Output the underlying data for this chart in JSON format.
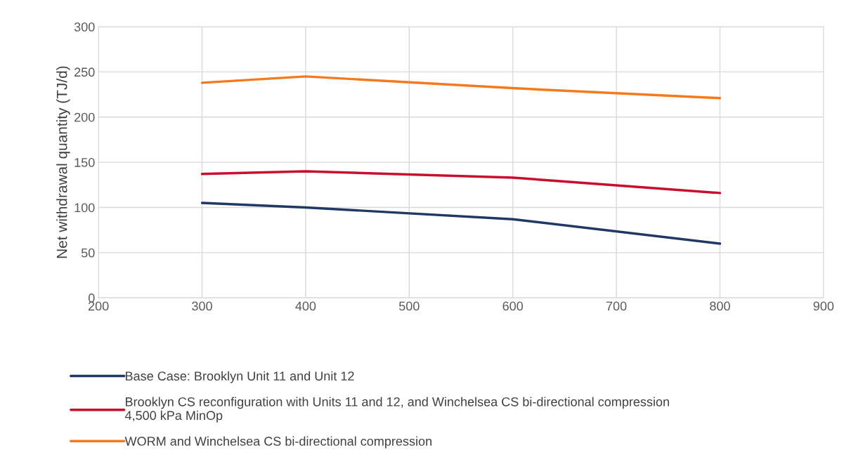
{
  "chart_data": {
    "type": "line",
    "ylabel": "Net withdrawal quantity (TJ/d)",
    "x": [
      300,
      400,
      600,
      800
    ],
    "series": [
      {
        "name": "Base Case: Brooklyn Unit 11 and Unit 12",
        "color": "#203864",
        "values": [
          105,
          100,
          87,
          60
        ]
      },
      {
        "name": "Brooklyn CS reconfiguration with Units 11 and 12, and Winchelsea CS bi-directional compression\n4,500 kPa MinOp",
        "color": "#c8102e",
        "values": [
          137,
          140,
          133,
          116
        ]
      },
      {
        "name": "WORM and Winchelsea CS bi-directional compression",
        "color": "#f47a20",
        "values": [
          238,
          245,
          232,
          221
        ]
      }
    ],
    "xlim": [
      200,
      900
    ],
    "xticks": [
      200,
      300,
      400,
      500,
      600,
      700,
      800,
      900
    ],
    "ylim": [
      0,
      300
    ],
    "yticks": [
      0,
      50,
      100,
      150,
      200,
      250,
      300
    ],
    "grid": true,
    "legend": "bottom",
    "marker": "none",
    "line_style": "solid"
  }
}
